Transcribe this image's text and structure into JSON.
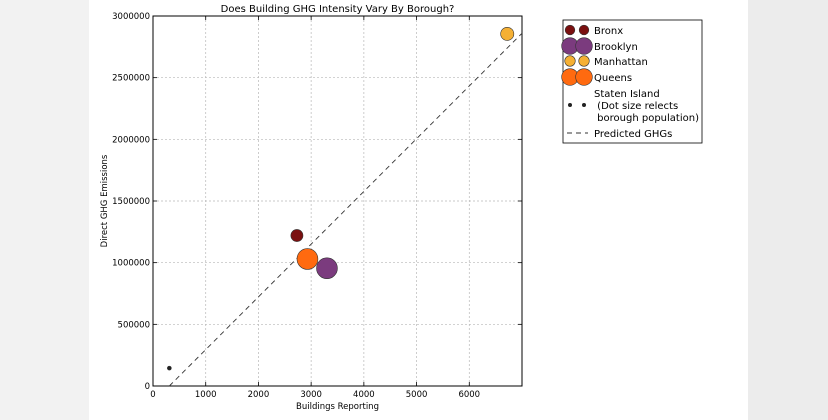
{
  "chart_data": {
    "type": "scatter",
    "title": "Does Building GHG Intensity Vary By Borough?",
    "xlabel": "Buildings Reporting",
    "ylabel": "Direct GHG Emissions",
    "xlim": [
      0,
      7000
    ],
    "ylim": [
      0,
      3000000
    ],
    "x_ticks": [
      "0",
      "1000",
      "2000",
      "3000",
      "4000",
      "5000",
      "6000"
    ],
    "x_tick_values": [
      0,
      1000,
      2000,
      3000,
      4000,
      5000,
      6000
    ],
    "y_ticks": [
      "0",
      "500000",
      "1000000",
      "1500000",
      "2000000",
      "2500000",
      "3000000"
    ],
    "y_tick_values": [
      0,
      500000,
      1000000,
      1500000,
      2000000,
      2500000,
      3000000
    ],
    "grid": true,
    "legend_position": "outside-right",
    "series": [
      {
        "name": "Bronx",
        "x": 2730,
        "y": 1220000,
        "marker_size": 0.55,
        "color": "#7a1010"
      },
      {
        "name": "Brooklyn",
        "x": 3300,
        "y": 955000,
        "marker_size": 0.95,
        "color": "#7b3b7e"
      },
      {
        "name": "Manhattan",
        "x": 6720,
        "y": 2855000,
        "marker_size": 0.6,
        "color": "#f5b034"
      },
      {
        "name": "Queens",
        "x": 2930,
        "y": 1030000,
        "marker_size": 0.95,
        "color": "#ff6a10"
      },
      {
        "name": "Staten Island\n (Dot size relects\n borough population)",
        "x": 310,
        "y": 145000,
        "marker_size": 0.12,
        "color": "#222222"
      }
    ],
    "predicted_line": {
      "name": "Predicted GHGs",
      "x": [
        310,
        7000
      ],
      "y": [
        0,
        2860000
      ],
      "style": "dashed"
    },
    "legend": {
      "entries": [
        {
          "label": "Bronx",
          "color": "#7a1010",
          "kind": "marker"
        },
        {
          "label": "Brooklyn",
          "color": "#7b3b7e",
          "kind": "marker"
        },
        {
          "label": "Manhattan",
          "color": "#f5b034",
          "kind": "marker"
        },
        {
          "label": "Queens",
          "color": "#ff6a10",
          "kind": "marker"
        },
        {
          "label": "Staten Island",
          "label2": " (Dot size relects",
          "label3": " borough population)",
          "color": "#222222",
          "kind": "marker"
        },
        {
          "label": "Predicted GHGs",
          "kind": "line"
        }
      ]
    }
  }
}
